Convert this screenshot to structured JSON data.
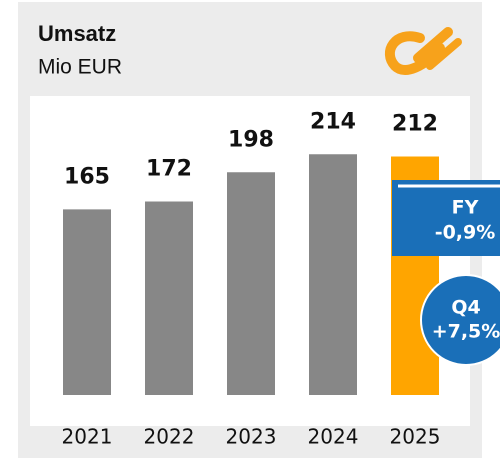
{
  "chart_data": {
    "type": "bar",
    "title": "Umsatz",
    "subtitle": "Mio EUR",
    "categories": [
      "2021",
      "2022",
      "2023",
      "2024",
      "2025"
    ],
    "values": [
      165,
      172,
      198,
      214,
      212
    ],
    "colors": [
      "#878787",
      "#878787",
      "#878787",
      "#878787",
      "#ffa500"
    ],
    "ylim": [
      0,
      350
    ],
    "annotations": [
      {
        "label": "FY",
        "text": "-0,9%"
      },
      {
        "label": "Q4",
        "text": "+7,5%"
      }
    ]
  }
}
